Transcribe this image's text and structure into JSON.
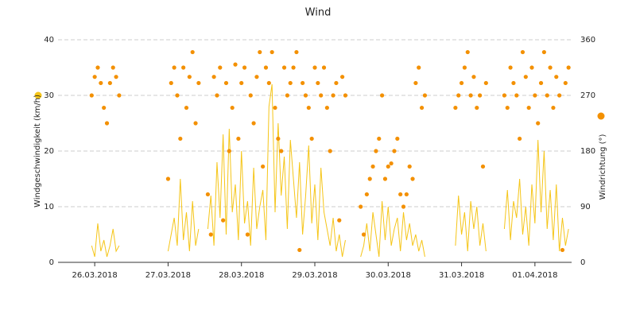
{
  "chart_data": {
    "type": "line",
    "title": "Wind",
    "xlim": [
      0,
      168
    ],
    "xticks": [
      {
        "value": 12,
        "label": "26.03.2018"
      },
      {
        "value": 36,
        "label": "27.03.2018"
      },
      {
        "value": 60,
        "label": "28.03.2018"
      },
      {
        "value": 84,
        "label": "29.03.2018"
      },
      {
        "value": 108,
        "label": "30.03.2018"
      },
      {
        "value": 132,
        "label": "31.03.2018"
      },
      {
        "value": 156,
        "label": "01.04.2018"
      }
    ],
    "ylim": [
      0,
      40
    ],
    "yticks": [
      0,
      10,
      20,
      30,
      40
    ],
    "y2lim": [
      0,
      360
    ],
    "y2ticks": [
      0,
      90,
      180,
      270,
      360
    ],
    "grid": true,
    "x": [
      11,
      12,
      13,
      14,
      15,
      16,
      17,
      18,
      19,
      20,
      21,
      36,
      37,
      38,
      39,
      40,
      41,
      42,
      43,
      44,
      45,
      46,
      47,
      49,
      50,
      51,
      52,
      53,
      54,
      55,
      56,
      57,
      58,
      59,
      60,
      61,
      62,
      63,
      64,
      65,
      66,
      67,
      68,
      69,
      70,
      71,
      72,
      73,
      74,
      75,
      76,
      77,
      78,
      79,
      80,
      81,
      82,
      83,
      84,
      85,
      86,
      87,
      88,
      89,
      90,
      91,
      92,
      93,
      94,
      95,
      99,
      100,
      101,
      102,
      103,
      104,
      105,
      106,
      107,
      108,
      109,
      110,
      111,
      112,
      113,
      114,
      115,
      116,
      117,
      118,
      119,
      120,
      121,
      130,
      131,
      132,
      133,
      134,
      135,
      136,
      137,
      138,
      139,
      140,
      141,
      146,
      147,
      148,
      149,
      150,
      151,
      152,
      153,
      154,
      155,
      156,
      157,
      158,
      159,
      160,
      161,
      162,
      163,
      164,
      165,
      166,
      167
    ],
    "series": [
      {
        "name": "Windgeschwindigkeit (km/h)",
        "type": "line",
        "axis": "y",
        "color": "#f5c518",
        "values": [
          3,
          1,
          7,
          2,
          4,
          1,
          3,
          6,
          2,
          3,
          null,
          2,
          5,
          8,
          3,
          15,
          4,
          9,
          2,
          11,
          3,
          6,
          null,
          6,
          12,
          3,
          18,
          8,
          23,
          5,
          24,
          9,
          14,
          4,
          20,
          7,
          11,
          3,
          17,
          6,
          10,
          13,
          4,
          28,
          32,
          9,
          25,
          12,
          19,
          6,
          22,
          15,
          8,
          18,
          5,
          12,
          21,
          7,
          14,
          4,
          17,
          9,
          6,
          3,
          8,
          2,
          5,
          1,
          4,
          null,
          1,
          3,
          7,
          2,
          9,
          5,
          1,
          11,
          4,
          10,
          3,
          6,
          8,
          2,
          9,
          4,
          7,
          3,
          5,
          2,
          4,
          1,
          null,
          3,
          12,
          5,
          9,
          2,
          11,
          6,
          10,
          3,
          7,
          2,
          null,
          6,
          13,
          4,
          11,
          8,
          15,
          5,
          10,
          3,
          14,
          7,
          22,
          9,
          20,
          6,
          13,
          4,
          14,
          2,
          8,
          3,
          6
        ]
      },
      {
        "name": "Windrichtung (°)",
        "type": "scatter",
        "axis": "y2",
        "color": "#f39000",
        "values": [
          270,
          300,
          315,
          290,
          250,
          225,
          290,
          315,
          300,
          270,
          null,
          135,
          290,
          315,
          270,
          200,
          315,
          250,
          300,
          340,
          225,
          290,
          null,
          110,
          45,
          300,
          270,
          315,
          68,
          290,
          180,
          250,
          320,
          200,
          290,
          315,
          45,
          270,
          225,
          300,
          340,
          155,
          315,
          290,
          340,
          250,
          200,
          180,
          315,
          270,
          290,
          315,
          340,
          20,
          290,
          270,
          250,
          200,
          315,
          290,
          270,
          315,
          250,
          180,
          270,
          290,
          68,
          300,
          270,
          null,
          90,
          45,
          110,
          135,
          155,
          180,
          200,
          270,
          135,
          155,
          160,
          180,
          200,
          110,
          90,
          110,
          155,
          135,
          290,
          315,
          250,
          270,
          null,
          250,
          270,
          290,
          315,
          340,
          270,
          300,
          250,
          270,
          155,
          290,
          null,
          270,
          250,
          315,
          290,
          270,
          200,
          340,
          300,
          250,
          315,
          270,
          225,
          290,
          340,
          270,
          315,
          250,
          300,
          270,
          20,
          290,
          315
        ]
      }
    ]
  }
}
